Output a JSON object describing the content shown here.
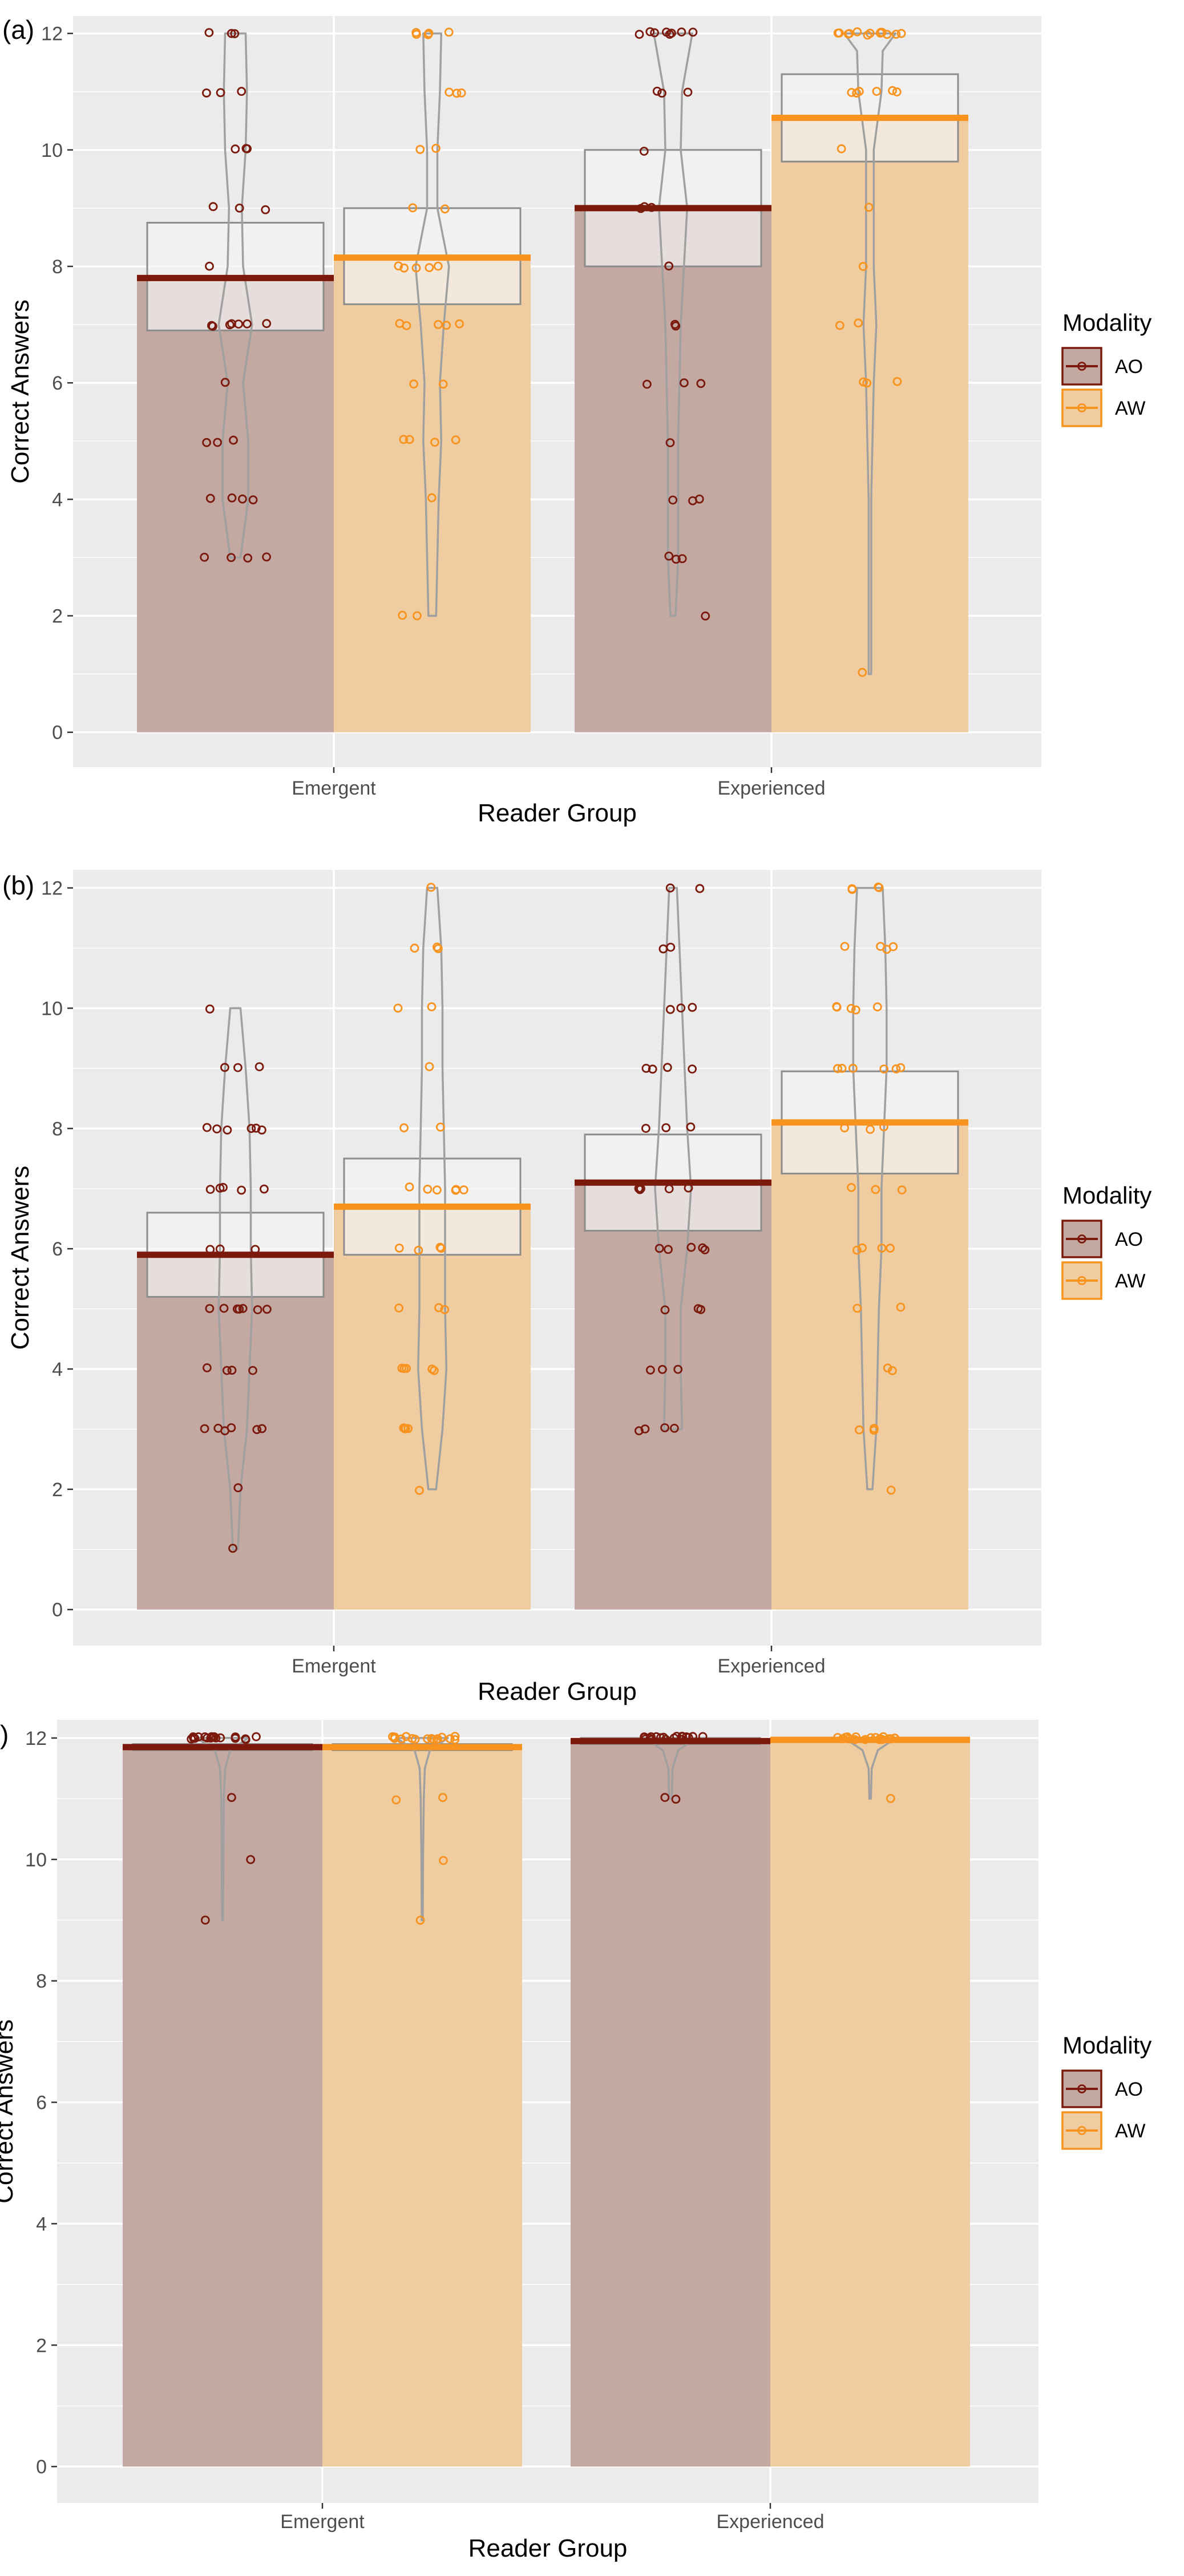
{
  "chart_data": [
    {
      "type": "bar",
      "panel_label": "(a)",
      "categories": [
        "Emergent",
        "Experienced"
      ],
      "series": [
        {
          "name": "AO",
          "values": [
            7.8,
            9.0
          ],
          "ci": [
            [
              6.9,
              8.75
            ],
            [
              8.0,
              10.0
            ]
          ],
          "points": [
            [
              12,
              12,
              12,
              11,
              11,
              11,
              10,
              10,
              10,
              9,
              9,
              9,
              8,
              7,
              7,
              7,
              7,
              7,
              7,
              7,
              6,
              5,
              5,
              5,
              4,
              4,
              4,
              4,
              3,
              3,
              3,
              3
            ],
            [
              12,
              12,
              12,
              12,
              12,
              12,
              12,
              12,
              11,
              11,
              11,
              10,
              9,
              9,
              9,
              8,
              7,
              7,
              6,
              6,
              6,
              5,
              4,
              4,
              4,
              3,
              3,
              3,
              2
            ]
          ]
        },
        {
          "name": "AW",
          "values": [
            8.15,
            10.55
          ],
          "ci": [
            [
              7.35,
              9.0
            ],
            [
              9.8,
              11.3
            ]
          ],
          "points": [
            [
              12,
              12,
              12,
              12,
              12,
              11,
              11,
              11,
              10,
              10,
              9,
              9,
              8,
              8,
              8,
              8,
              8,
              7,
              7,
              7,
              7,
              7,
              6,
              6,
              5,
              5,
              5,
              5,
              4,
              2,
              2
            ],
            [
              12,
              12,
              12,
              12,
              12,
              12,
              12,
              12,
              12,
              12,
              12,
              12,
              12,
              11,
              11,
              11,
              11,
              11,
              11,
              10,
              9,
              8,
              7,
              7,
              6,
              6,
              6,
              1
            ]
          ]
        }
      ],
      "violins": [
        [
          [
            3,
            0.2
          ],
          [
            4,
            0.5
          ],
          [
            5,
            0.5
          ],
          [
            6,
            0.3
          ],
          [
            7,
            0.65
          ],
          [
            8,
            0.3
          ],
          [
            9,
            0.25
          ],
          [
            10,
            0.4
          ],
          [
            11,
            0.45
          ],
          [
            12,
            0.4
          ]
        ],
        [
          [
            2,
            0.15
          ],
          [
            4,
            0.25
          ],
          [
            5,
            0.35
          ],
          [
            6,
            0.3
          ],
          [
            7,
            0.45
          ],
          [
            8,
            0.65
          ],
          [
            9,
            0.2
          ],
          [
            10,
            0.2
          ],
          [
            11,
            0.3
          ],
          [
            12,
            0.35
          ]
        ],
        [
          [
            2,
            0.1
          ],
          [
            3,
            0.2
          ],
          [
            5,
            0.2
          ],
          [
            7,
            0.3
          ],
          [
            9,
            0.55
          ],
          [
            10,
            0.3
          ],
          [
            11,
            0.35
          ],
          [
            12,
            0.75
          ]
        ],
        [
          [
            1,
            0.05
          ],
          [
            2,
            0.05
          ],
          [
            4,
            0.05
          ],
          [
            6,
            0.15
          ],
          [
            7,
            0.25
          ],
          [
            8,
            0.15
          ],
          [
            10,
            0.15
          ],
          [
            11,
            0.45
          ],
          [
            11.7,
            0.5
          ],
          [
            12,
            1.0
          ]
        ]
      ],
      "title": "",
      "xlabel": "Reader Group",
      "ylabel": "Correct Answers",
      "ylim": [
        -0.6,
        12.3
      ],
      "yticks": [
        0,
        2,
        4,
        6,
        8,
        10,
        12
      ],
      "legend": {
        "title": "Modality",
        "entries": [
          "AO",
          "AW"
        ],
        "position": "right"
      }
    },
    {
      "type": "bar",
      "panel_label": "(b)",
      "categories": [
        "Emergent",
        "Experienced"
      ],
      "series": [
        {
          "name": "AO",
          "values": [
            5.9,
            7.1
          ],
          "ci": [
            [
              5.2,
              6.6
            ],
            [
              6.3,
              7.9
            ]
          ],
          "points": [
            [
              10,
              9,
              9,
              9,
              8,
              8,
              8,
              8,
              8,
              8,
              7,
              7,
              7,
              7,
              7,
              6,
              6,
              6,
              5,
              5,
              5,
              5,
              5,
              5,
              5,
              4,
              4,
              4,
              4,
              3,
              3,
              3,
              3,
              3,
              3,
              2,
              1
            ],
            [
              12,
              12,
              11,
              11,
              10,
              10,
              10,
              9,
              9,
              9,
              9,
              8,
              8,
              8,
              7,
              7,
              7,
              7,
              7,
              6,
              6,
              6,
              6,
              6,
              5,
              5,
              5,
              4,
              4,
              4,
              3,
              3,
              3,
              3
            ]
          ]
        },
        {
          "name": "AW",
          "values": [
            6.7,
            8.1
          ],
          "ci": [
            [
              5.9,
              7.5
            ],
            [
              7.25,
              8.95
            ]
          ],
          "points": [
            [
              12,
              11,
              11,
              11,
              10,
              10,
              9,
              8,
              8,
              7,
              7,
              7,
              7,
              7,
              7,
              6,
              6,
              6,
              6,
              5,
              5,
              5,
              4,
              4,
              4,
              4,
              4,
              3,
              3,
              3,
              3,
              2
            ],
            [
              12,
              12,
              12,
              12,
              11,
              11,
              11,
              11,
              10,
              10,
              10,
              10,
              10,
              9,
              9,
              9,
              9,
              9,
              9,
              8,
              8,
              8,
              7,
              7,
              7,
              6,
              6,
              6,
              6,
              5,
              5,
              4,
              4,
              3,
              3,
              3,
              2
            ]
          ]
        }
      ],
      "violins": [
        [
          [
            1,
            0.1
          ],
          [
            2,
            0.2
          ],
          [
            3,
            0.45
          ],
          [
            4,
            0.55
          ],
          [
            5,
            0.65
          ],
          [
            6,
            0.6
          ],
          [
            7,
            0.6
          ],
          [
            8,
            0.55
          ],
          [
            9,
            0.4
          ],
          [
            10,
            0.2
          ]
        ],
        [
          [
            2,
            0.15
          ],
          [
            3,
            0.4
          ],
          [
            4,
            0.55
          ],
          [
            5,
            0.5
          ],
          [
            6,
            0.5
          ],
          [
            7,
            0.5
          ],
          [
            8,
            0.45
          ],
          [
            9,
            0.4
          ],
          [
            10,
            0.4
          ],
          [
            11,
            0.35
          ],
          [
            12,
            0.2
          ]
        ],
        [
          [
            3,
            0.35
          ],
          [
            4,
            0.3
          ],
          [
            5,
            0.3
          ],
          [
            6,
            0.55
          ],
          [
            7,
            0.7
          ],
          [
            8,
            0.55
          ],
          [
            9,
            0.45
          ],
          [
            10,
            0.35
          ],
          [
            11,
            0.25
          ],
          [
            12,
            0.15
          ]
        ],
        [
          [
            2,
            0.1
          ],
          [
            3,
            0.25
          ],
          [
            4,
            0.3
          ],
          [
            5,
            0.35
          ],
          [
            6,
            0.45
          ],
          [
            7,
            0.45
          ],
          [
            8,
            0.55
          ],
          [
            9,
            0.65
          ],
          [
            10,
            0.65
          ],
          [
            11,
            0.6
          ],
          [
            12,
            0.5
          ]
        ]
      ],
      "title": "",
      "xlabel": "Reader Group",
      "ylabel": "Correct Answers",
      "ylim": [
        -0.6,
        12.3
      ],
      "yticks": [
        0,
        2,
        4,
        6,
        8,
        10,
        12
      ],
      "legend": {
        "title": "Modality",
        "entries": [
          "AO",
          "AW"
        ],
        "position": "right"
      }
    },
    {
      "type": "bar",
      "panel_label": ")",
      "categories": [
        "Emergent",
        "Experienced"
      ],
      "series": [
        {
          "name": "AO",
          "values": [
            11.85,
            11.95
          ],
          "ci": [
            [
              11.8,
              11.9
            ],
            [
              11.9,
              12.0
            ]
          ],
          "points": [
            [
              12,
              12,
              12,
              12,
              12,
              12,
              12,
              12,
              12,
              12,
              12,
              12,
              12,
              12,
              12,
              12,
              12,
              12,
              11,
              10,
              9
            ],
            [
              12,
              12,
              12,
              12,
              12,
              12,
              12,
              12,
              12,
              12,
              12,
              12,
              12,
              12,
              12,
              12,
              12,
              12,
              12,
              11,
              11
            ]
          ]
        },
        {
          "name": "AW",
          "values": [
            11.85,
            11.97
          ],
          "ci": [
            [
              11.8,
              11.9
            ],
            [
              11.95,
              12.0
            ]
          ],
          "points": [
            [
              12,
              12,
              12,
              12,
              12,
              12,
              12,
              12,
              12,
              12,
              12,
              12,
              12,
              12,
              12,
              12,
              11,
              11,
              10,
              9
            ],
            [
              12,
              12,
              12,
              12,
              12,
              12,
              12,
              12,
              12,
              12,
              12,
              12,
              12,
              12,
              12,
              12,
              12,
              12,
              12,
              11
            ]
          ]
        }
      ],
      "violins": [
        [
          [
            9,
            0.02
          ],
          [
            10,
            0.03
          ],
          [
            11,
            0.05
          ],
          [
            11.5,
            0.1
          ],
          [
            11.8,
            0.3
          ],
          [
            12,
            1.0
          ]
        ],
        [
          [
            9,
            0.02
          ],
          [
            10,
            0.03
          ],
          [
            11,
            0.06
          ],
          [
            11.5,
            0.1
          ],
          [
            11.8,
            0.3
          ],
          [
            12,
            1.0
          ]
        ],
        [
          [
            11,
            0.05
          ],
          [
            11.5,
            0.08
          ],
          [
            11.8,
            0.3
          ],
          [
            12,
            1.0
          ]
        ],
        [
          [
            11,
            0.03
          ],
          [
            11.5,
            0.06
          ],
          [
            11.8,
            0.3
          ],
          [
            12,
            1.0
          ]
        ]
      ],
      "title": "",
      "xlabel": "Reader Group",
      "ylabel": "Correct Answers",
      "ylim": [
        -0.6,
        12.3
      ],
      "yticks": [
        0,
        2,
        4,
        6,
        8,
        10,
        12
      ],
      "legend": {
        "title": "Modality",
        "entries": [
          "AO",
          "AW"
        ],
        "position": "right"
      }
    }
  ],
  "colors": {
    "panel_bg": "#ebebeb",
    "grid": "#ffffff",
    "ao": "#7b1a0c",
    "aw": "#f7931e",
    "ao_fill": "#c4a8a2",
    "aw_fill": "#efcda1",
    "ci_box": "#f2f2f2",
    "violin": "#a0a0a0"
  }
}
